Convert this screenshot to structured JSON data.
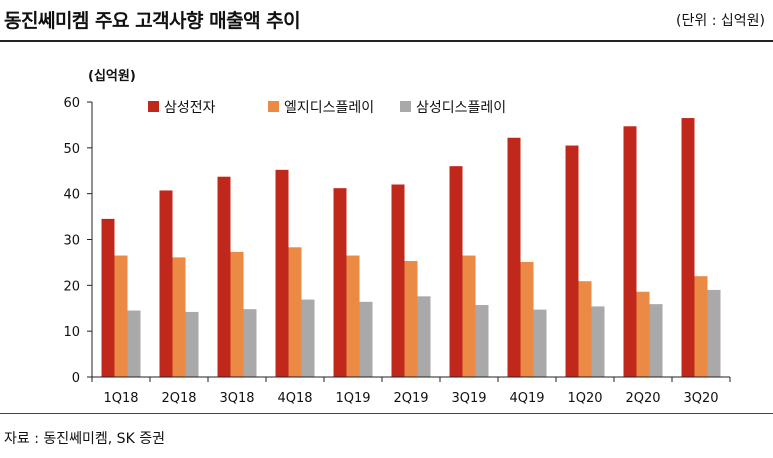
{
  "header": {
    "title": "동진쎄미켐 주요 고객사향 매출액 추이",
    "unit": "(단위 : 십억원)"
  },
  "footer": {
    "source": "자료 : 동진쎄미켐, SK 증권"
  },
  "chart_data": {
    "type": "bar",
    "ylabel": "(십억원)",
    "ylim": [
      0,
      60
    ],
    "yticks": [
      0,
      10,
      20,
      30,
      40,
      50,
      60
    ],
    "legend_position": "top-center",
    "grid": false,
    "categories": [
      "1Q18",
      "2Q18",
      "3Q18",
      "4Q18",
      "1Q19",
      "2Q19",
      "3Q19",
      "4Q19",
      "1Q20",
      "2Q20",
      "3Q20"
    ],
    "series": [
      {
        "name": "삼성전자",
        "color": "#c0281b",
        "values": [
          34.5,
          40.7,
          43.7,
          45.2,
          41.2,
          42.0,
          46.0,
          52.2,
          50.5,
          54.7,
          56.5
        ]
      },
      {
        "name": "엘지디스플레이",
        "color": "#ea8a45",
        "values": [
          26.5,
          26.1,
          27.3,
          28.3,
          26.5,
          25.3,
          26.5,
          25.1,
          20.9,
          18.6,
          22.0
        ]
      },
      {
        "name": "삼성디스플레이",
        "color": "#a9a9a9",
        "values": [
          14.5,
          14.2,
          14.8,
          16.9,
          16.4,
          17.6,
          15.7,
          14.7,
          15.4,
          15.9,
          19.0
        ]
      }
    ]
  }
}
